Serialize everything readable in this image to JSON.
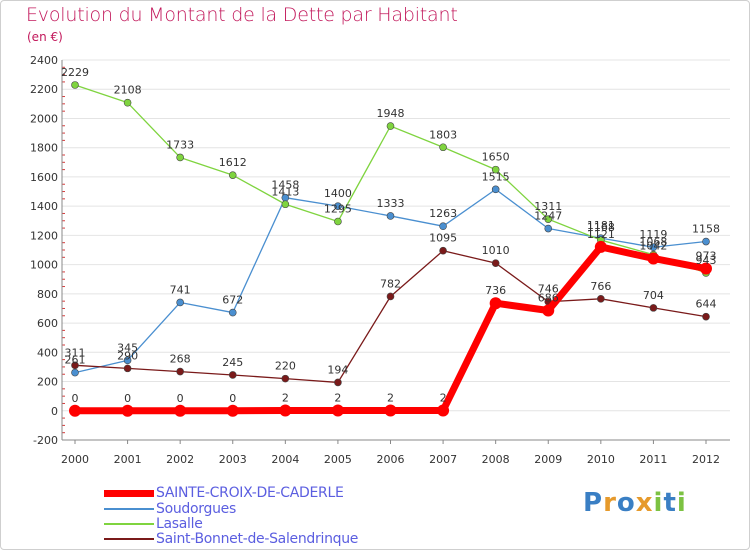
{
  "title": "Evolution du Montant de la Dette par Habitant",
  "subtitle": "(en €)",
  "logo": {
    "text": "Proxiti",
    "letters": [
      [
        "P",
        "#3a7fc4"
      ],
      [
        "r",
        "#e69a2c"
      ],
      [
        "o",
        "#3a7fc4"
      ],
      [
        "x",
        "#e69a2c"
      ],
      [
        "i",
        "#7cc242"
      ],
      [
        "t",
        "#3a7fc4"
      ],
      [
        "i",
        "#7cc242"
      ]
    ]
  },
  "chart_data": {
    "type": "line",
    "title": "Evolution du Montant de la Dette par Habitant",
    "ylabel": "(en €)",
    "xlabel": "",
    "x": [
      "2000",
      "2001",
      "2002",
      "2003",
      "2004",
      "2005",
      "2006",
      "2007",
      "2008",
      "2009",
      "2010",
      "2011",
      "2012"
    ],
    "ylim": [
      -200,
      2400
    ],
    "yticks": [
      -200,
      0,
      200,
      400,
      600,
      800,
      1000,
      1200,
      1400,
      1600,
      1800,
      2000,
      2200,
      2400
    ],
    "legend_position": "bottom",
    "series": [
      {
        "name": "SAINTE-CROIX-DE-CADERLE",
        "color": "#ff0000",
        "values": [
          0,
          0,
          0,
          0,
          2,
          2,
          2,
          2,
          736,
          686,
          1121,
          1042,
          973
        ]
      },
      {
        "name": "Soudorgues",
        "color": "#4a8fd0",
        "values": [
          261,
          345,
          741,
          672,
          1458,
          1400,
          1333,
          1263,
          1515,
          1247,
          1181,
          1119,
          1158
        ]
      },
      {
        "name": "Lasalle",
        "color": "#7fd43f",
        "values": [
          2229,
          2108,
          1733,
          1612,
          1413,
          1295,
          1948,
          1803,
          1650,
          1311,
          1168,
          1068,
          943
        ]
      },
      {
        "name": "Saint-Bonnet-de-Salendrinque",
        "color": "#7a1a1a",
        "values": [
          311,
          290,
          268,
          245,
          220,
          194,
          782,
          1095,
          1010,
          746,
          766,
          704,
          644
        ]
      }
    ]
  }
}
